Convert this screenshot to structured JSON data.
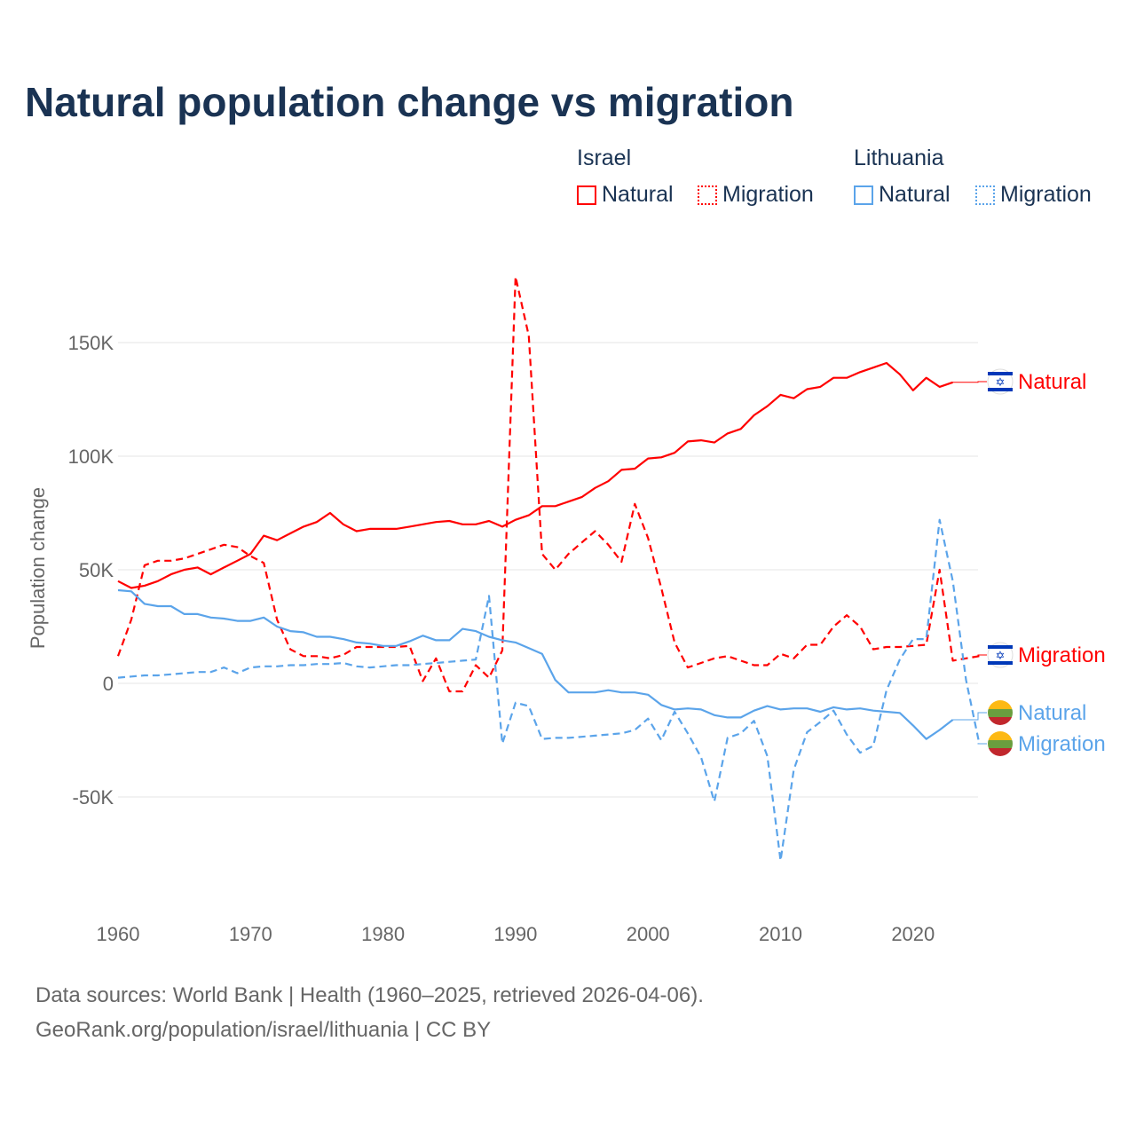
{
  "title": "Natural population change vs migration",
  "legend": {
    "groups": [
      {
        "name": "Israel",
        "items": [
          "Natural",
          "Migration"
        ],
        "color": "#ff0000"
      },
      {
        "name": "Lithuania",
        "items": [
          "Natural",
          "Migration"
        ],
        "color": "#5ba4ea"
      }
    ]
  },
  "footer": {
    "line1": "Data sources: World Bank | Health (1960–2025, retrieved 2026-04-06).",
    "line2": "GeoRank.org/population/israel/lithuania | CC BY"
  },
  "chart_data": {
    "type": "line",
    "title": "Natural population change vs migration",
    "xlabel": "",
    "ylabel": "Population change",
    "xlim": [
      1960,
      2025
    ],
    "ylim": [
      -90,
      190
    ],
    "x_ticks": [
      1960,
      1970,
      1980,
      1990,
      2000,
      2010,
      2020
    ],
    "x_tick_labels": [
      "1960",
      "1970",
      "1980",
      "1990",
      "2000",
      "2010",
      "2020"
    ],
    "y_ticks": [
      -50,
      0,
      50,
      100,
      150
    ],
    "y_tick_labels": [
      "-50K",
      "0",
      "50K",
      "100K",
      "150K"
    ],
    "units": "thousands",
    "grid": true,
    "legend_placement": "top-right",
    "series": [
      {
        "name": "Israel Natural",
        "label": "Natural",
        "country": "Israel",
        "color": "#ff0000",
        "dash": false,
        "start": 1960,
        "values": [
          45,
          42,
          43,
          45,
          48,
          50,
          51,
          48,
          51,
          54,
          57,
          65,
          63,
          66,
          69,
          71,
          75,
          70,
          67,
          68,
          68,
          68,
          69,
          70,
          71,
          71.5,
          70,
          70,
          71.5,
          69,
          72,
          74,
          78,
          78,
          80,
          82,
          86,
          89,
          94,
          94.5,
          99,
          99.5,
          101.5,
          106.5,
          107,
          106,
          110,
          112,
          118,
          122,
          127,
          125.5,
          129.5,
          130.5,
          134.5,
          134.5,
          137,
          139,
          141,
          136,
          129,
          134.5,
          130.5,
          132.5
        ]
      },
      {
        "name": "Israel Migration",
        "label": "Migration",
        "country": "Israel",
        "color": "#ff0000",
        "dash": true,
        "start": 1960,
        "values": [
          12,
          28,
          52,
          54,
          54,
          55,
          57,
          59,
          61,
          60,
          56,
          53,
          28,
          15,
          12,
          12,
          11,
          12.5,
          16,
          16,
          16,
          16,
          16.5,
          1,
          11,
          -3.5,
          -3.5,
          8,
          2.5,
          14.5,
          179,
          153,
          57,
          50,
          57,
          62,
          67,
          61,
          53.5,
          79,
          64,
          42,
          18,
          7,
          9,
          11,
          12,
          10,
          8,
          8,
          13,
          11,
          17,
          17,
          25,
          30,
          25,
          15,
          16,
          16,
          16.5,
          17,
          50,
          10,
          11,
          12
        ]
      },
      {
        "name": "Lithuania Natural",
        "label": "Natural",
        "country": "Lithuania",
        "color": "#5ba4ea",
        "dash": false,
        "start": 1960,
        "values": [
          41,
          40.5,
          35,
          34,
          34,
          30.5,
          30.5,
          29,
          28.5,
          27.5,
          27.5,
          29,
          25,
          23,
          22.5,
          20.5,
          20.5,
          19.5,
          18,
          17.5,
          16.5,
          16.5,
          18.5,
          21,
          19,
          19,
          24,
          23,
          20.5,
          19,
          18,
          15.5,
          13,
          1.5,
          -4,
          -4,
          -4,
          -3,
          -4,
          -4,
          -5,
          -9.5,
          -11.5,
          -11,
          -11.5,
          -14,
          -15,
          -15,
          -12,
          -10,
          -11.5,
          -11,
          -11,
          -12.5,
          -10.5,
          -11.5,
          -11,
          -12,
          -12.5,
          -13,
          -18.5,
          -24.5,
          -20.5,
          -16
        ]
      },
      {
        "name": "Lithuania Migration",
        "label": "Migration",
        "country": "Lithuania",
        "color": "#5ba4ea",
        "dash": true,
        "start": 1960,
        "values": [
          2.5,
          3,
          3.5,
          3.5,
          4,
          4.5,
          5,
          5,
          7,
          4.5,
          7,
          7.5,
          7.5,
          8,
          8,
          8.5,
          8.5,
          9,
          7.5,
          7,
          7.5,
          8,
          8,
          8.5,
          9,
          9.5,
          10,
          10.5,
          38.5,
          -26.5,
          -8.5,
          -10,
          -24.5,
          -24,
          -24,
          -23.5,
          -23,
          -22.5,
          -22,
          -20.5,
          -15.5,
          -25,
          -12.5,
          -22,
          -32.5,
          -52,
          -24,
          -22,
          -16.5,
          -32,
          -78,
          -38,
          -21.5,
          -17,
          -12,
          -22.5,
          -30.5,
          -27.5,
          -3,
          10.5,
          19.5,
          19.5,
          72,
          45,
          1.5,
          -26.5
        ]
      }
    ]
  }
}
